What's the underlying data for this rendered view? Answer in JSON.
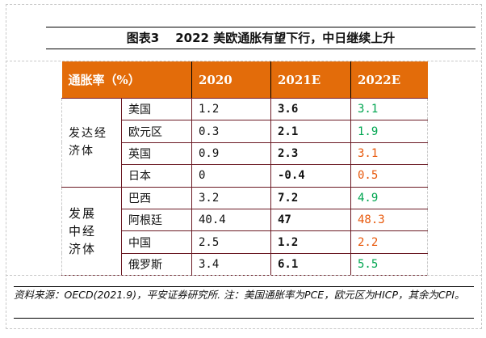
{
  "title": {
    "label": "图表3",
    "text": "2022 美欧通胀有望下行，中日继续上升"
  },
  "table": {
    "headers": [
      "通胀率（%）",
      "2020",
      "2021E",
      "2022E"
    ],
    "groups": [
      {
        "name": "发达经济体",
        "rows": [
          {
            "country": "美国",
            "v2020": "1.2",
            "v2021": "3.6",
            "v2022": "3.1",
            "trend": "down"
          },
          {
            "country": "欧元区",
            "v2020": "0.3",
            "v2021": "2.1",
            "v2022": "1.9",
            "trend": "down"
          },
          {
            "country": "英国",
            "v2020": "0.9",
            "v2021": "2.3",
            "v2022": "3.1",
            "trend": "up"
          },
          {
            "country": "日本",
            "v2020": "0",
            "v2021": "-0.4",
            "v2022": "0.5",
            "trend": "up"
          }
        ]
      },
      {
        "name": "发展中经济体",
        "rows": [
          {
            "country": "巴西",
            "v2020": "3.2",
            "v2021": "7.2",
            "v2022": "4.9",
            "trend": "down"
          },
          {
            "country": "阿根廷",
            "v2020": "40.4",
            "v2021": "47",
            "v2022": "48.3",
            "trend": "up"
          },
          {
            "country": "中国",
            "v2020": "2.5",
            "v2021": "1.2",
            "v2022": "2.2",
            "trend": "up"
          },
          {
            "country": "俄罗斯",
            "v2020": "3.4",
            "v2021": "6.1",
            "v2022": "5.5",
            "trend": "down"
          }
        ]
      }
    ]
  },
  "colors": {
    "header_bg": "#E36C0A",
    "down": "#00A550",
    "up": "#E8590C",
    "border": "#6B1A24"
  },
  "note": "资料来源：OECD(2021.9)，平安证券研究所. 注：美国通胀率为PCE，欧元区为HICP，其余为CPI。"
}
